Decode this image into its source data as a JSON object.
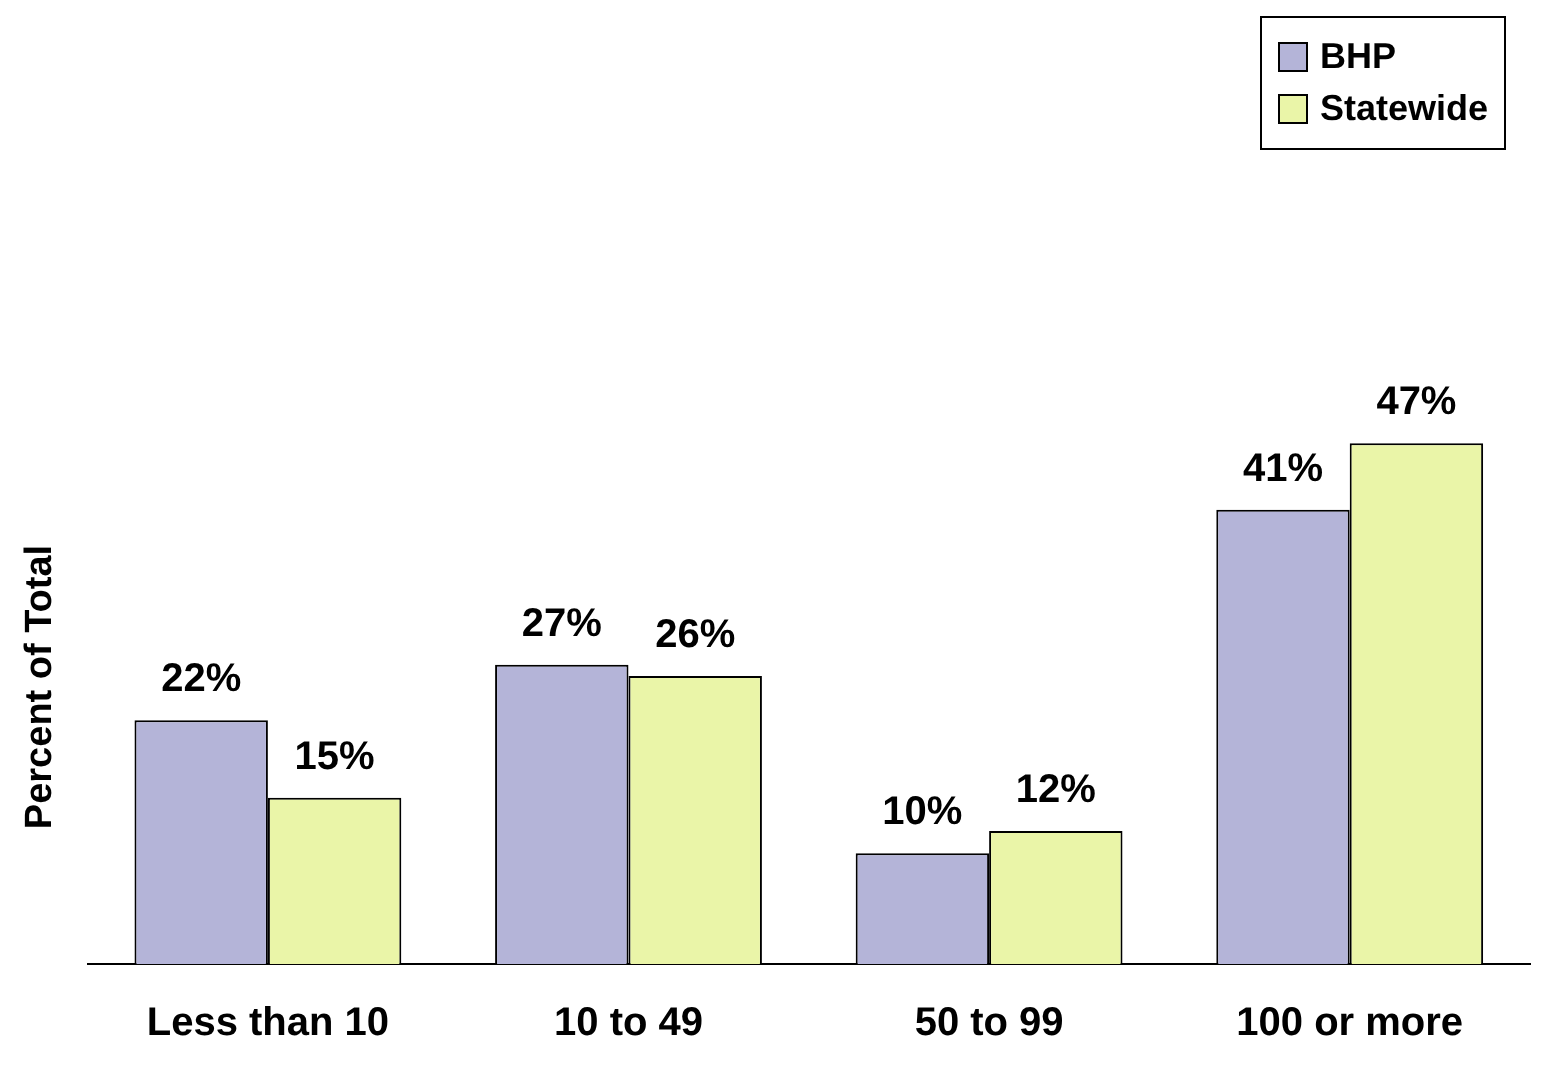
{
  "chart_data": {
    "type": "bar",
    "ylabel": "Percent of Total",
    "categories": [
      "Less than 10",
      "10 to 49",
      "50 to 99",
      "100 or more"
    ],
    "series": [
      {
        "name": "BHP",
        "color": "#b4b4d8",
        "values": [
          22,
          27,
          10,
          41
        ],
        "value_labels": [
          "22%",
          "27%",
          "10%",
          "41%"
        ]
      },
      {
        "name": "Statewide",
        "color": "#eaf5a8",
        "values": [
          15,
          26,
          12,
          47
        ],
        "value_labels": [
          "15%",
          "26%",
          "12%",
          "47%"
        ]
      }
    ],
    "legend": "top right",
    "grid": false
  }
}
